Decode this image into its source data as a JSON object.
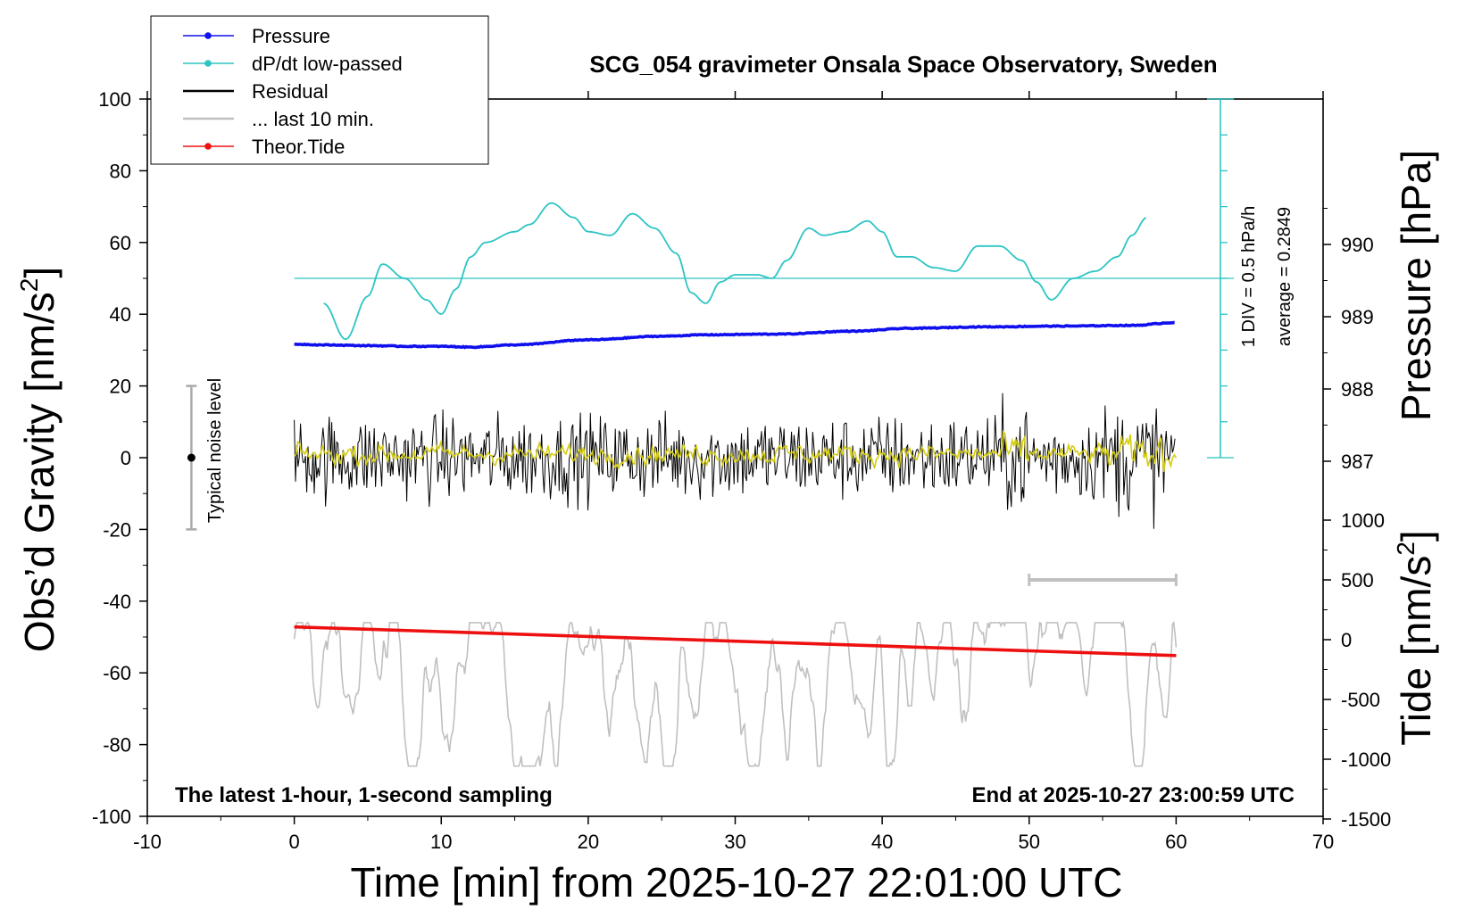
{
  "chart_data": {
    "type": "line",
    "title": "SCG_054 gravimeter Onsala Space Observatory, Sweden",
    "xlabel": "Time [min] from 2025-10-27 22:01:00 UTC",
    "ylabel_left": "Obs’d Gravity [nm/s",
    "ylabel_left_sup": "2",
    "ylabel_left_end": "]",
    "ylabel_pressure": "Pressure [hPa]",
    "ylabel_tide": "Tide [nm/s",
    "ylabel_tide_sup": "2",
    "ylabel_tide_end": "]",
    "xlim": [
      -10,
      70
    ],
    "ylim": [
      -100,
      100
    ],
    "x_ticks": [
      "-10",
      "0",
      "10",
      "20",
      "30",
      "40",
      "50",
      "60",
      "70"
    ],
    "y_ticks": [
      "-100",
      "-80",
      "-60",
      "-40",
      "-20",
      "0",
      "20",
      "40",
      "60",
      "80",
      "100"
    ],
    "pressure_ticks": [
      "987",
      "988",
      "989",
      "990"
    ],
    "tide_ticks": [
      "1000",
      "500",
      "0",
      "-500",
      "-1000",
      "-1500"
    ],
    "bottom_left_note": "The latest 1-hour, 1-second sampling",
    "bottom_right_note": "End at 2025-10-27 23:00:59 UTC",
    "noise_label": "Typical noise level",
    "noise_bar": {
      "x": -7,
      "y_low": -20,
      "y_high": 20,
      "y_mid": 0
    },
    "scale_bar_label": "1 DIV = 0.5 hPa/h",
    "average_label": "average = 0.2849",
    "dpdt_average": 0.2849,
    "last10_bar": {
      "x_start": 50,
      "x_end": 60,
      "tide_value": 500
    },
    "legend": [
      {
        "label": "Pressure",
        "color": "#1010ee",
        "marker": true
      },
      {
        "label": "dP/dt low-passed",
        "color": "#2ec4c4",
        "marker": true
      },
      {
        "label": "Residual",
        "color": "#000000",
        "marker": false
      },
      {
        "label": "... last 10 min.",
        "color": "#c0c0c0",
        "marker": false
      },
      {
        "label": "Theor.Tide",
        "color": "#ee1010",
        "marker": true
      }
    ],
    "colors": {
      "pressure": "#1010ee",
      "dpdt": "#2ec4c4",
      "residual": "#000000",
      "residual_filtered": "#d4cc10",
      "last10": "#c0c0c0",
      "tide": "#ee1010"
    },
    "series": [
      {
        "name": "Pressure",
        "axis": "pressure_hPa",
        "x": [
          0,
          2,
          5,
          8,
          10,
          12,
          15,
          20,
          25,
          28,
          33,
          38,
          42,
          47,
          52,
          57,
          60
        ],
        "values": [
          988.62,
          988.61,
          988.6,
          988.59,
          988.59,
          988.58,
          988.61,
          988.68,
          988.73,
          988.75,
          988.76,
          988.8,
          988.84,
          988.86,
          988.87,
          988.88,
          988.92
        ]
      },
      {
        "name": "dP/dt low-passed",
        "axis": "gravity_plot_units",
        "x": [
          2,
          3.5,
          5,
          6,
          7.5,
          9,
          10,
          11,
          12,
          13,
          15,
          16,
          17.5,
          19,
          20,
          21.5,
          23,
          24.5,
          26,
          27,
          28,
          29,
          30,
          31.5,
          32.5,
          33.5,
          35,
          36,
          37.5,
          39,
          40,
          41,
          42,
          43.5,
          45,
          46.5,
          48,
          49.5,
          50.5,
          51.5,
          53,
          54.5,
          56,
          57,
          58
        ],
        "values": [
          43,
          33,
          45,
          54,
          50,
          44,
          40,
          47,
          56,
          60,
          63,
          65,
          71,
          67,
          63,
          62,
          68,
          64,
          57,
          46,
          43,
          49,
          51,
          51,
          50,
          55,
          64,
          62,
          63,
          66,
          63,
          56,
          56,
          53,
          52,
          59,
          59,
          55,
          49,
          44,
          50,
          52,
          56,
          62,
          67
        ]
      },
      {
        "name": "Theor.Tide",
        "axis": "tide_nm_s2",
        "x": [
          0,
          10,
          20,
          30,
          40,
          50,
          60
        ],
        "values": [
          107,
          67,
          27,
          -13,
          -53,
          -93,
          -133
        ]
      }
    ]
  }
}
